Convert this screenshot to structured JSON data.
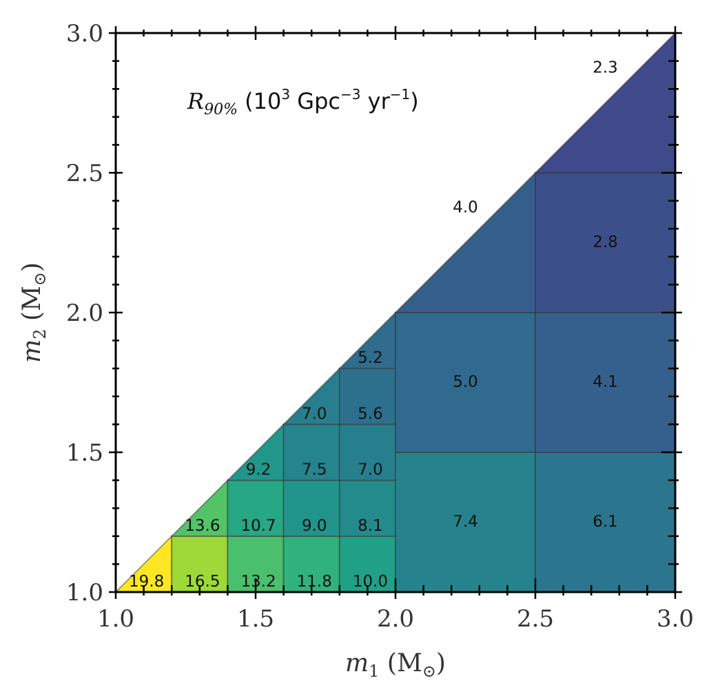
{
  "chart_data": {
    "type": "heatmap",
    "title": {
      "symbol": "R",
      "subscript": "90%",
      "unit_open": " (10",
      "unit_exp": "3",
      "unit_mid": " Gpc",
      "unit_exp2": "−3",
      "unit_mid2": " yr",
      "unit_exp3": "−1",
      "unit_close": ")"
    },
    "xlabel": {
      "main": "m",
      "sub": "1",
      "rest": " (M",
      "rest_sub": "⊙",
      "close": ")"
    },
    "ylabel": {
      "main": "m",
      "sub": "2",
      "rest": " (M",
      "rest_sub": "⊙",
      "close": ")"
    },
    "xlim": [
      1.0,
      3.0
    ],
    "ylim": [
      1.0,
      3.0
    ],
    "x_ticks": [
      "1.0",
      "1.5",
      "2.0",
      "2.5",
      "3.0"
    ],
    "y_ticks": [
      "1.0",
      "1.5",
      "2.0",
      "2.5",
      "3.0"
    ],
    "color_range": [
      2.3,
      19.8
    ],
    "cells": [
      {
        "m1": [
          1.0,
          1.2
        ],
        "m2": [
          1.0,
          1.2
        ],
        "value": 19.8,
        "label": "19.8",
        "triangle": true
      },
      {
        "m1": [
          1.2,
          1.4
        ],
        "m2": [
          1.0,
          1.2
        ],
        "value": 16.5,
        "label": "16.5"
      },
      {
        "m1": [
          1.4,
          1.6
        ],
        "m2": [
          1.0,
          1.2
        ],
        "value": 13.2,
        "label": "13.2"
      },
      {
        "m1": [
          1.6,
          1.8
        ],
        "m2": [
          1.0,
          1.2
        ],
        "value": 11.8,
        "label": "11.8"
      },
      {
        "m1": [
          1.8,
          2.0
        ],
        "m2": [
          1.0,
          1.2
        ],
        "value": 10.0,
        "label": "10.0"
      },
      {
        "m1": [
          1.2,
          1.4
        ],
        "m2": [
          1.2,
          1.4
        ],
        "value": 13.6,
        "label": "13.6",
        "triangle": true
      },
      {
        "m1": [
          1.4,
          1.6
        ],
        "m2": [
          1.2,
          1.4
        ],
        "value": 10.7,
        "label": "10.7"
      },
      {
        "m1": [
          1.6,
          1.8
        ],
        "m2": [
          1.2,
          1.4
        ],
        "value": 9.0,
        "label": "9.0"
      },
      {
        "m1": [
          1.8,
          2.0
        ],
        "m2": [
          1.2,
          1.4
        ],
        "value": 8.1,
        "label": "8.1"
      },
      {
        "m1": [
          1.4,
          1.6
        ],
        "m2": [
          1.4,
          1.6
        ],
        "value": 9.2,
        "label": "9.2",
        "triangle": true
      },
      {
        "m1": [
          1.6,
          1.8
        ],
        "m2": [
          1.4,
          1.6
        ],
        "value": 7.5,
        "label": "7.5"
      },
      {
        "m1": [
          1.8,
          2.0
        ],
        "m2": [
          1.4,
          1.6
        ],
        "value": 7.0,
        "label": "7.0"
      },
      {
        "m1": [
          1.6,
          1.8
        ],
        "m2": [
          1.6,
          1.8
        ],
        "value": 7.0,
        "label": "7.0",
        "triangle": true
      },
      {
        "m1": [
          1.8,
          2.0
        ],
        "m2": [
          1.6,
          1.8
        ],
        "value": 5.6,
        "label": "5.6"
      },
      {
        "m1": [
          1.8,
          2.0
        ],
        "m2": [
          1.8,
          2.0
        ],
        "value": 5.2,
        "label": "5.2",
        "triangle": true
      },
      {
        "m1": [
          2.0,
          2.5
        ],
        "m2": [
          1.0,
          1.5
        ],
        "value": 7.4,
        "label": "7.4"
      },
      {
        "m1": [
          2.5,
          3.0
        ],
        "m2": [
          1.0,
          1.5
        ],
        "value": 6.1,
        "label": "6.1"
      },
      {
        "m1": [
          2.0,
          2.5
        ],
        "m2": [
          1.5,
          2.0
        ],
        "value": 5.0,
        "label": "5.0"
      },
      {
        "m1": [
          2.5,
          3.0
        ],
        "m2": [
          1.5,
          2.0
        ],
        "value": 4.1,
        "label": "4.1"
      },
      {
        "m1": [
          2.0,
          2.5
        ],
        "m2": [
          2.0,
          2.5
        ],
        "value": 4.0,
        "label": "4.0",
        "triangle": true
      },
      {
        "m1": [
          2.5,
          3.0
        ],
        "m2": [
          2.0,
          2.5
        ],
        "value": 2.8,
        "label": "2.8"
      },
      {
        "m1": [
          2.5,
          3.0
        ],
        "m2": [
          2.5,
          3.0
        ],
        "value": 2.3,
        "label": "2.3",
        "triangle": true
      }
    ],
    "colors": {
      "colormap": [
        "#3e4a89",
        "#31688e",
        "#26828e",
        "#1f9e89",
        "#35b779",
        "#6ece58",
        "#b5de2b",
        "#fde725"
      ],
      "axis": "#000000",
      "cell_border": "#333333"
    }
  }
}
